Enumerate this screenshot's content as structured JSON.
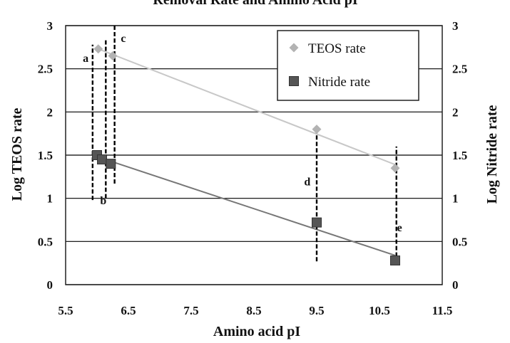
{
  "chart_data": {
    "type": "scatter",
    "title": "Removal Rate and Amino Acid pI",
    "xlabel": "Amino acid pI",
    "ylabel_left": "Log TEOS rate",
    "ylabel_right": "Log Nitride rate",
    "xlim": [
      5.5,
      11.5
    ],
    "ylim": [
      0,
      3
    ],
    "xticks": [
      "5.5",
      "6.5",
      "7.5",
      "8.5",
      "9.5",
      "10.5",
      "11.5"
    ],
    "yticks": [
      "0",
      "0.5",
      "1",
      "1.5",
      "2",
      "2.5",
      "3"
    ],
    "grid": "horizontal",
    "legend_position": "top-right",
    "series": [
      {
        "name": "TEOS rate",
        "marker": "diamond",
        "color": "#b3b3b3",
        "trendline_color": "#c8c8c8",
        "x": [
          6.02,
          6.25,
          9.5,
          10.75
        ],
        "y": [
          2.73,
          2.65,
          1.8,
          1.35
        ]
      },
      {
        "name": "Nitride rate",
        "marker": "square",
        "color": "#555555",
        "trendline_color": "#777777",
        "x": [
          6.0,
          6.08,
          6.22,
          9.5,
          10.75
        ],
        "y": [
          1.5,
          1.45,
          1.4,
          0.72,
          0.28
        ]
      }
    ],
    "annotations": [
      {
        "label": "a",
        "x": 5.82,
        "y": 2.58,
        "line_x": 5.93,
        "line_y": [
          0.98,
          2.78
        ]
      },
      {
        "label": "b",
        "x": 6.1,
        "y": 0.93,
        "line_x": 6.14,
        "line_y": [
          1.0,
          2.85
        ]
      },
      {
        "label": "c",
        "x": 6.42,
        "y": 2.81,
        "line_x": 6.28,
        "line_y": [
          1.17,
          3.0
        ]
      },
      {
        "label": "d",
        "x": 9.35,
        "y": 1.15,
        "line_x": 9.5,
        "line_y": [
          0.27,
          1.82
        ]
      },
      {
        "label": "e",
        "x": 10.82,
        "y": 0.62,
        "line_x": 10.77,
        "line_y": [
          0.25,
          1.6
        ]
      }
    ]
  }
}
